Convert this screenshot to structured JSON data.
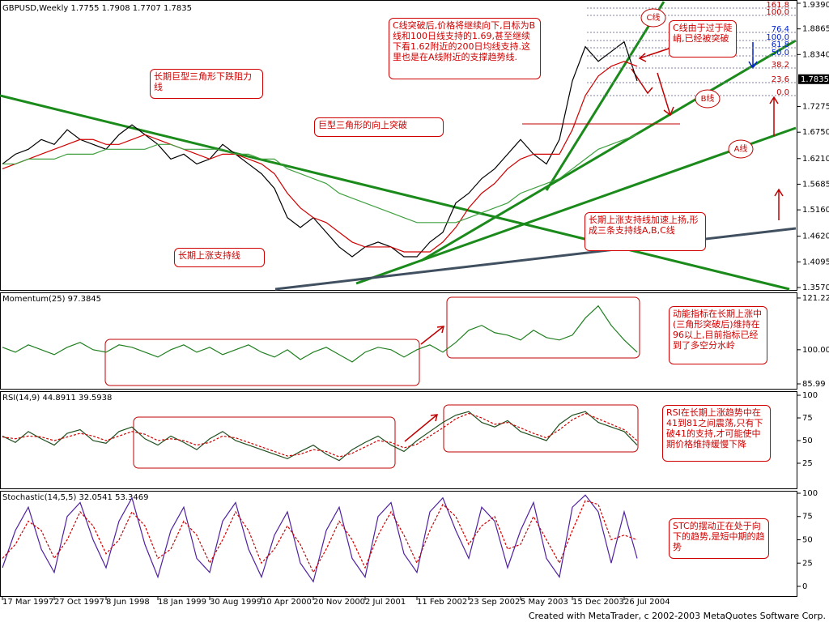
{
  "chart_data": [
    {
      "type": "line",
      "title": "GBPUSD,Weekly  1.7755 1.7908 1.7707 1.7835",
      "ylim": [
        1.357,
        1.939
      ],
      "yticks": [
        {
          "value": 1.939,
          "label": "1.9390"
        },
        {
          "value": 1.8865,
          "label": "1.8865"
        },
        {
          "value": 1.834,
          "label": "1.8340"
        },
        {
          "value": 1.7275,
          "label": "1.7275"
        },
        {
          "value": 1.675,
          "label": "1.6750"
        },
        {
          "value": 1.621,
          "label": "1.6210"
        },
        {
          "value": 1.5685,
          "label": "1.5685"
        },
        {
          "value": 1.516,
          "label": "1.5160"
        },
        {
          "value": 1.462,
          "label": "1.4620"
        },
        {
          "value": 1.4095,
          "label": "1.4095"
        },
        {
          "value": 1.357,
          "label": "1.3570"
        }
      ],
      "last_price": {
        "value": 1.7835,
        "label": "1.7835"
      },
      "series": [
        {
          "color": "#000000",
          "values": [
            1.61,
            1.63,
            1.64,
            1.66,
            1.65,
            1.68,
            1.66,
            1.65,
            1.64,
            1.67,
            1.69,
            1.67,
            1.65,
            1.62,
            1.63,
            1.61,
            1.62,
            1.65,
            1.63,
            1.61,
            1.59,
            1.56,
            1.5,
            1.48,
            1.5,
            1.47,
            1.44,
            1.42,
            1.44,
            1.45,
            1.44,
            1.42,
            1.42,
            1.45,
            1.47,
            1.53,
            1.55,
            1.58,
            1.6,
            1.63,
            1.66,
            1.63,
            1.61,
            1.66,
            1.78,
            1.85,
            1.82,
            1.84,
            1.86,
            1.78
          ]
        },
        {
          "color": "#d00000",
          "values": [
            1.6,
            1.61,
            1.62,
            1.63,
            1.64,
            1.65,
            1.66,
            1.66,
            1.65,
            1.65,
            1.66,
            1.67,
            1.66,
            1.65,
            1.64,
            1.63,
            1.62,
            1.63,
            1.63,
            1.62,
            1.61,
            1.59,
            1.55,
            1.52,
            1.5,
            1.49,
            1.47,
            1.45,
            1.44,
            1.44,
            1.44,
            1.43,
            1.43,
            1.43,
            1.45,
            1.48,
            1.52,
            1.55,
            1.57,
            1.6,
            1.62,
            1.63,
            1.63,
            1.63,
            1.68,
            1.75,
            1.79,
            1.81,
            1.82,
            1.81
          ]
        },
        {
          "color": "#40a040",
          "values": [
            1.61,
            1.61,
            1.62,
            1.62,
            1.62,
            1.63,
            1.63,
            1.63,
            1.64,
            1.64,
            1.64,
            1.64,
            1.65,
            1.65,
            1.64,
            1.64,
            1.64,
            1.64,
            1.63,
            1.63,
            1.62,
            1.62,
            1.6,
            1.59,
            1.58,
            1.57,
            1.55,
            1.54,
            1.53,
            1.52,
            1.51,
            1.5,
            1.49,
            1.49,
            1.49,
            1.49,
            1.5,
            1.51,
            1.52,
            1.53,
            1.55,
            1.56,
            1.57,
            1.58,
            1.6,
            1.62,
            1.64,
            1.65,
            1.66,
            1.67
          ]
        }
      ],
      "fib_labels": [
        "161.8",
        "100.0",
        "76.4",
        "100.0",
        "61.8",
        "50.0",
        "38.2",
        "23.6",
        "0.0"
      ],
      "line_labels": [
        "C线",
        "B线",
        "A线"
      ],
      "annotations": [
        "C线突破后,价格将继续向下,目标为B线和100日线支持的1.69,甚至继续下看1.62附近的200日均线支持.这里也是在A线附近的支撑趋势线.",
        "C线由于过于陡峭,已经被突破",
        "长期巨型三角形下跌阻力线",
        "巨型三角形的向上突破",
        "长期上涨支持线加速上扬,形成三条支持线A,B,C线",
        "长期上涨支持线"
      ]
    },
    {
      "type": "line",
      "title": "Momentum(25) 97.3845",
      "ylim": [
        84,
        123.2
      ],
      "yticks": [
        121.22,
        {
          "value": 100,
          "label": "100.00"
        },
        85.99
      ],
      "series": [
        {
          "color": "#208020",
          "values": [
            101,
            99,
            102,
            100,
            98,
            101,
            103,
            100,
            99,
            102,
            101,
            99,
            97,
            100,
            102,
            99,
            101,
            98,
            100,
            102,
            99,
            97,
            100,
            96,
            99,
            101,
            98,
            95,
            99,
            101,
            100,
            97,
            100,
            102,
            99,
            103,
            108,
            110,
            107,
            106,
            104,
            108,
            105,
            104,
            106,
            113,
            118,
            110,
            104,
            99
          ]
        }
      ],
      "annotations": [
        "动能指标在长期上涨中(三角形突破后)维持在96以上,目前指标已经到了多空分水岭"
      ]
    },
    {
      "type": "line",
      "title": "RSI(14,9) 44.8911 39.5938",
      "ylim": [
        -3.6,
        104.5
      ],
      "yticks": [
        100,
        75,
        50,
        25
      ],
      "series": [
        {
          "color": "#205020",
          "values": [
            55,
            48,
            60,
            52,
            45,
            58,
            62,
            50,
            47,
            60,
            65,
            52,
            45,
            55,
            48,
            40,
            52,
            60,
            50,
            45,
            40,
            35,
            30,
            38,
            45,
            35,
            28,
            40,
            48,
            55,
            45,
            38,
            50,
            60,
            70,
            78,
            82,
            70,
            65,
            72,
            60,
            55,
            50,
            68,
            78,
            82,
            70,
            65,
            60,
            45
          ]
        },
        {
          "color": "#d00000",
          "dashed": true,
          "values": [
            54,
            52,
            55,
            54,
            50,
            54,
            58,
            55,
            50,
            55,
            60,
            57,
            50,
            52,
            50,
            45,
            48,
            55,
            53,
            48,
            43,
            38,
            33,
            35,
            40,
            38,
            32,
            36,
            43,
            50,
            48,
            42,
            46,
            55,
            64,
            74,
            80,
            75,
            68,
            70,
            64,
            58,
            53,
            62,
            73,
            80,
            74,
            68,
            62,
            50
          ]
        }
      ],
      "annotations": [
        "RSI在长期上涨趋势中在41到81之间震荡,只有下破41的支持,才可能使中期价格维持缓慢下降"
      ]
    },
    {
      "type": "line",
      "title": "Stochastic(14,5,5) 32.0541 53.3469",
      "ylim": [
        -11.3,
        102.6
      ],
      "yticks": [
        100,
        75,
        50,
        25,
        0
      ],
      "series": [
        {
          "color": "#5020a0",
          "values": [
            20,
            60,
            85,
            40,
            15,
            75,
            90,
            50,
            20,
            70,
            95,
            45,
            10,
            60,
            85,
            30,
            15,
            70,
            90,
            40,
            10,
            55,
            80,
            25,
            5,
            60,
            85,
            30,
            10,
            75,
            90,
            35,
            15,
            80,
            95,
            60,
            30,
            85,
            70,
            20,
            60,
            90,
            30,
            10,
            85,
            98,
            80,
            25,
            80,
            30
          ]
        },
        {
          "color": "#d00000",
          "dashed": true,
          "values": [
            30,
            45,
            70,
            60,
            30,
            50,
            80,
            65,
            35,
            50,
            80,
            65,
            30,
            40,
            70,
            55,
            25,
            50,
            80,
            60,
            25,
            40,
            65,
            45,
            15,
            40,
            70,
            50,
            20,
            55,
            80,
            55,
            25,
            60,
            88,
            75,
            45,
            65,
            75,
            40,
            45,
            75,
            50,
            25,
            60,
            92,
            88,
            50,
            55,
            50
          ]
        }
      ],
      "annotations": [
        "STC的摆动正在处于向下的趋势,是短中期的趋势"
      ]
    }
  ],
  "x_labels": {
    "categories": [
      "17 Mar 1997",
      null,
      null,
      null,
      "27 Oct 1997",
      null,
      null,
      null,
      "8 Jun 1998",
      null,
      null,
      null,
      "18 Jan 1999",
      null,
      null,
      null,
      "30 Aug 1999",
      null,
      null,
      null,
      "10 Apr 2000",
      null,
      null,
      null,
      "20 Nov 2000",
      null,
      null,
      null,
      "2 Jul 2001",
      null,
      null,
      null,
      "11 Feb 2002",
      null,
      null,
      null,
      "23 Sep 2002",
      null,
      null,
      null,
      "5 May 2003",
      null,
      null,
      null,
      "15 Dec 2003",
      null,
      null,
      null,
      "26 Jul 2004",
      null
    ]
  },
  "footer": "Created with MetaTrader, c 2002-2003 MetaQuotes Software Corp."
}
